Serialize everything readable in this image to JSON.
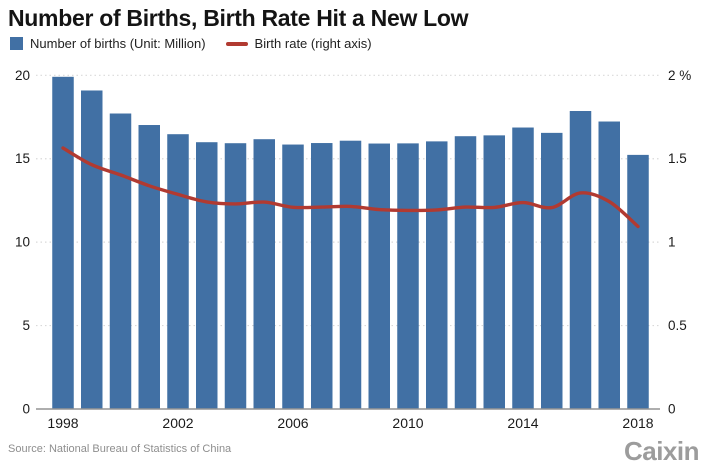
{
  "title": "Number of Births, Birth Rate Hit a New Low",
  "legend": {
    "births_label": "Number of births (Unit: Million)",
    "rate_label": "Birth rate (right axis)"
  },
  "source": "Source: National Bureau of Statistics of China",
  "logo": "Caixin",
  "colors": {
    "bar": "#4170a4",
    "line": "#b13a31",
    "grid": "#d9d9d9",
    "axis": "#949494",
    "tick_text": "#1a1a1a"
  },
  "chart_data": {
    "type": "bar",
    "title": "Number of Births, Birth Rate Hit a New Low",
    "x": [
      1998,
      1999,
      2000,
      2001,
      2002,
      2003,
      2004,
      2005,
      2006,
      2007,
      2008,
      2009,
      2010,
      2011,
      2012,
      2013,
      2014,
      2015,
      2016,
      2017,
      2018
    ],
    "series": [
      {
        "name": "Number of births (Unit: Million)",
        "type": "bar",
        "axis": "left",
        "values": [
          19.91,
          19.09,
          17.71,
          17.02,
          16.47,
          15.99,
          15.93,
          16.17,
          15.85,
          15.94,
          16.08,
          15.91,
          15.92,
          16.04,
          16.35,
          16.4,
          16.87,
          16.55,
          17.86,
          17.23,
          15.23
        ]
      },
      {
        "name": "Birth rate (right axis)",
        "type": "line",
        "axis": "right",
        "values": [
          1.564,
          1.464,
          1.403,
          1.338,
          1.286,
          1.241,
          1.229,
          1.24,
          1.209,
          1.21,
          1.214,
          1.195,
          1.19,
          1.193,
          1.21,
          1.208,
          1.237,
          1.207,
          1.295,
          1.243,
          1.094
        ]
      }
    ],
    "left_axis": {
      "range": [
        0,
        20
      ],
      "ticks": [
        0,
        5,
        10,
        15,
        20
      ]
    },
    "right_axis": {
      "range": [
        0,
        2
      ],
      "ticks": [
        0,
        0.5,
        1,
        1.5,
        2
      ],
      "tick_labels": [
        "0",
        "0.5",
        "1",
        "1.5",
        "2 %"
      ]
    },
    "x_axis": {
      "tick_labels": [
        "1998",
        "2002",
        "2006",
        "2010",
        "2014",
        "2018"
      ],
      "tick_years": [
        1998,
        2002,
        2006,
        2010,
        2014,
        2018
      ]
    },
    "grid": "dotted horizontal",
    "legend_position": "top-left"
  }
}
